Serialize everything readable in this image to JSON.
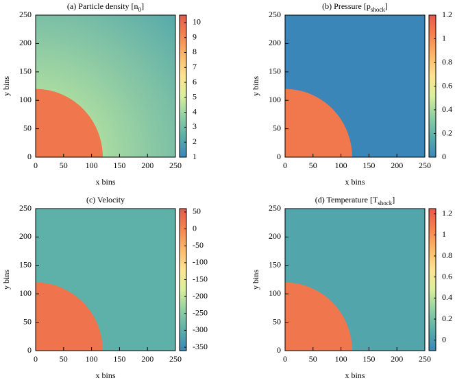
{
  "chart_data": [
    {
      "type": "heatmap",
      "title": [
        "(a) Particle density [n",
        "0",
        "]"
      ],
      "xlabel": "x bins",
      "ylabel": "y bins",
      "xlim": [
        0,
        250
      ],
      "ylim": [
        0,
        250
      ],
      "xticks": [
        0,
        50,
        100,
        150,
        200,
        250
      ],
      "yticks": [
        0,
        50,
        100,
        150,
        200,
        250
      ],
      "clim": [
        1,
        10.5
      ],
      "cticks": [
        1,
        2,
        3,
        4,
        5,
        6,
        7,
        8,
        9,
        10
      ],
      "colormap": [
        "#3a86b8",
        "#5aaea8",
        "#8fd0a4",
        "#d9ef9b",
        "#fee491",
        "#fdb869",
        "#f6844e",
        "#e55a4b"
      ],
      "field": {
        "radius": 120,
        "inside": 9.6,
        "outside_edge": 4.2,
        "outside_far": 2.2
      }
    },
    {
      "type": "heatmap",
      "title": [
        "(b) Pressure [p",
        "shock",
        "]"
      ],
      "xlabel": "x bins",
      "ylabel": "y bins",
      "xlim": [
        0,
        250
      ],
      "ylim": [
        0,
        250
      ],
      "xticks": [
        0,
        50,
        100,
        150,
        200,
        250
      ],
      "yticks": [
        0,
        50,
        100,
        150,
        200,
        250
      ],
      "clim": [
        0,
        1.2
      ],
      "cticks": [
        0,
        0.2,
        0.4,
        0.6,
        0.8,
        1,
        1.2
      ],
      "colormap": [
        "#3a86b8",
        "#5aaea8",
        "#8fd0a4",
        "#d9ef9b",
        "#fee491",
        "#fdb869",
        "#f6844e",
        "#e55a4b"
      ],
      "field": {
        "radius": 120,
        "inside": 1.08,
        "outside_edge": 0,
        "outside_far": 0
      }
    },
    {
      "type": "heatmap",
      "title": [
        "(c) Velocity"
      ],
      "xlabel": "x bins",
      "ylabel": "y bins",
      "xlim": [
        0,
        250
      ],
      "ylim": [
        0,
        250
      ],
      "xticks": [
        0,
        50,
        100,
        150,
        200,
        250
      ],
      "yticks": [
        0,
        50,
        100,
        150,
        200,
        250
      ],
      "clim": [
        -360,
        60
      ],
      "cticks": [
        -350,
        -300,
        -250,
        -200,
        -150,
        -100,
        -50,
        0,
        50
      ],
      "colormap": [
        "#3a86b8",
        "#5aaea8",
        "#8fd0a4",
        "#d9ef9b",
        "#fee491",
        "#fdb869",
        "#f6844e",
        "#e55a4b"
      ],
      "field": {
        "radius": 120,
        "inside": 25,
        "outside_edge": -295,
        "outside_far": -295
      }
    },
    {
      "type": "heatmap",
      "title": [
        "(d) Temperature [T",
        "shock",
        "]"
      ],
      "xlabel": "x bins",
      "ylabel": "y bins",
      "xlim": [
        0,
        250
      ],
      "ylim": [
        0,
        250
      ],
      "xticks": [
        0,
        50,
        100,
        150,
        200,
        250
      ],
      "yticks": [
        0,
        50,
        100,
        150,
        200,
        250
      ],
      "clim": [
        -0.1,
        1.25
      ],
      "cticks": [
        0,
        0.2,
        0.4,
        0.6,
        0.8,
        1,
        1.2
      ],
      "colormap": [
        "#3a86b8",
        "#5aaea8",
        "#8fd0a4",
        "#d9ef9b",
        "#fee491",
        "#fdb869",
        "#f6844e",
        "#e55a4b"
      ],
      "field": {
        "radius": 120,
        "inside": 1.12,
        "outside_edge": 0.05,
        "outside_far": 0.05
      }
    }
  ]
}
